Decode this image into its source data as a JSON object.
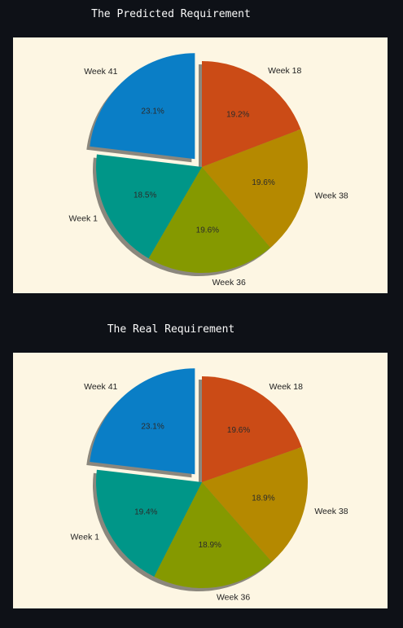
{
  "chart_data": [
    {
      "type": "pie",
      "title": "The Predicted Requirement",
      "labels": [
        "Week 18",
        "Week 38",
        "Week 36",
        "Week 1",
        "Week 41"
      ],
      "values": [
        19.2,
        19.6,
        19.6,
        18.5,
        23.1
      ],
      "value_labels": [
        "19.2%",
        "19.6%",
        "19.6%",
        "18.5%",
        "23.1%"
      ],
      "colors": [
        "#cb4b16",
        "#b58900",
        "#859900",
        "#009688",
        "#0a7ec6"
      ],
      "explode": [
        0,
        0,
        0,
        0,
        0.1
      ],
      "shadow": true,
      "start_angle_deg": 90,
      "direction": "clockwise",
      "background": "#fdf6e3"
    },
    {
      "type": "pie",
      "title": "The Real Requirement",
      "labels": [
        "Week 18",
        "Week 38",
        "Week 36",
        "Week 1",
        "Week 41"
      ],
      "values": [
        19.6,
        18.9,
        18.9,
        19.4,
        23.1
      ],
      "value_labels": [
        "19.6%",
        "18.9%",
        "18.9%",
        "19.4%",
        "23.1%"
      ],
      "colors": [
        "#cb4b16",
        "#b58900",
        "#859900",
        "#009688",
        "#0a7ec6"
      ],
      "explode": [
        0,
        0,
        0,
        0,
        0.1
      ],
      "shadow": true,
      "start_angle_deg": 90,
      "direction": "clockwise",
      "background": "#fdf6e3"
    }
  ]
}
